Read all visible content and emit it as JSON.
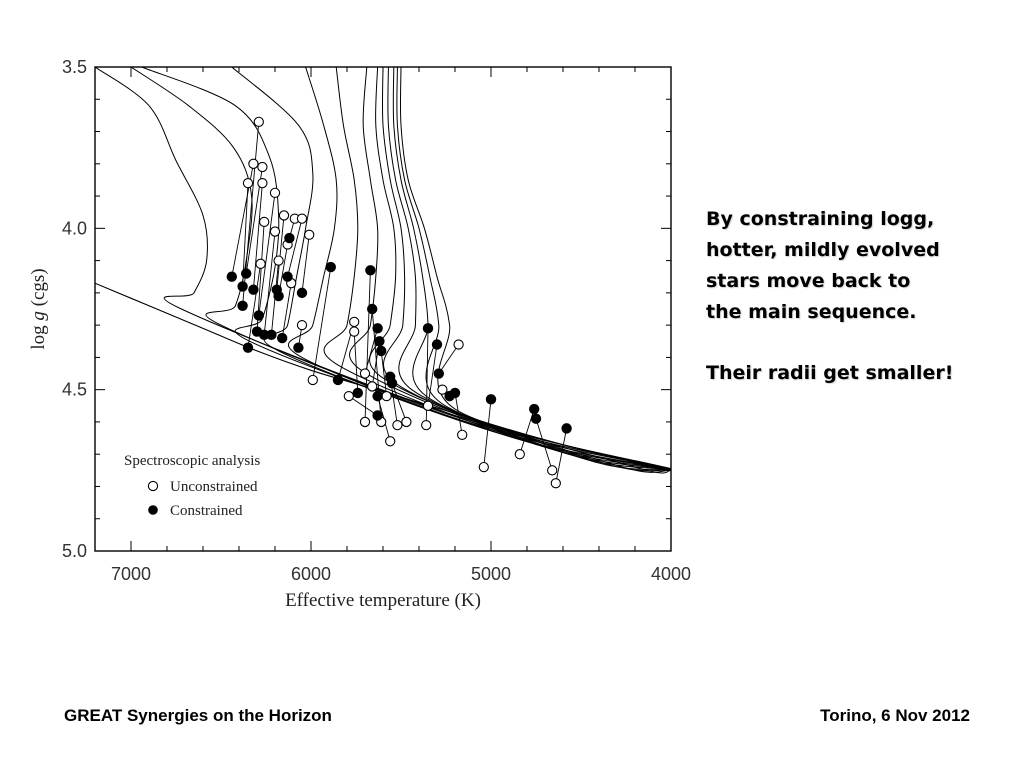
{
  "annotation": {
    "lines": [
      "By constraining logg,",
      "hotter, mildly evolved",
      "stars move back to",
      "the main sequence."
    ],
    "highlight": "Their radii get smaller!"
  },
  "footer": {
    "left": "GREAT Synergies on the Horizon",
    "right": "Torino, 6 Nov 2012"
  },
  "chart_data": {
    "type": "scatter",
    "title": "",
    "xlabel": "Effective temperature (K)",
    "ylabel_prefix": "log ",
    "ylabel_italic": "g",
    "ylabel_suffix": " (cgs)",
    "xlim": [
      7200,
      4000
    ],
    "ylim": [
      3.5,
      5.0
    ],
    "x_ticks": [
      7000,
      6000,
      5000,
      4000
    ],
    "x_tick_labels": [
      "7000",
      "6000",
      "5000",
      "4000"
    ],
    "y_ticks": [
      3.5,
      4.0,
      4.5,
      5.0
    ],
    "y_tick_labels": [
      "3.5",
      "4.0",
      "4.5",
      "5.0"
    ],
    "grid": false,
    "legend": {
      "position": "bottom-left",
      "title": "Spectroscopic analysis",
      "entries": [
        {
          "label": "Unconstrained",
          "marker": "open-circle"
        },
        {
          "label": "Constrained",
          "marker": "filled-circle"
        }
      ]
    },
    "colors": {
      "line": "#000000",
      "open_fill": "#ffffff",
      "filled": "#000000"
    },
    "isochrones": [
      {
        "points": [
          [
            7200,
            3.5
          ],
          [
            6900,
            3.62
          ],
          [
            6750,
            3.79
          ],
          [
            6600,
            3.96
          ],
          [
            6580,
            4.1
          ],
          [
            6650,
            4.2
          ],
          [
            6720,
            4.25
          ]
        ]
      },
      {
        "points": [
          [
            7000,
            3.5
          ],
          [
            6680,
            3.62
          ],
          [
            6430,
            3.75
          ],
          [
            6330,
            3.9
          ],
          [
            6360,
            4.1
          ],
          [
            6420,
            4.24
          ],
          [
            6500,
            4.3
          ]
        ]
      },
      {
        "points": [
          [
            6940,
            3.5
          ],
          [
            6420,
            3.62
          ],
          [
            6230,
            3.78
          ],
          [
            6180,
            3.96
          ],
          [
            6200,
            4.12
          ],
          [
            6270,
            4.28
          ],
          [
            6340,
            4.35
          ]
        ]
      },
      {
        "points": [
          [
            6440,
            3.5
          ],
          [
            6070,
            3.68
          ],
          [
            5990,
            3.83
          ],
          [
            6030,
            4.0
          ],
          [
            6080,
            4.15
          ],
          [
            6130,
            4.3
          ],
          [
            6180,
            4.38
          ]
        ]
      },
      {
        "points": [
          [
            6030,
            3.5
          ],
          [
            5930,
            3.68
          ],
          [
            5860,
            3.85
          ],
          [
            5870,
            4.0
          ],
          [
            5930,
            4.15
          ],
          [
            5990,
            4.3
          ],
          [
            6050,
            4.4
          ]
        ]
      },
      {
        "points": [
          [
            5860,
            3.5
          ],
          [
            5820,
            3.68
          ],
          [
            5760,
            3.85
          ],
          [
            5740,
            4.0
          ],
          [
            5760,
            4.15
          ],
          [
            5800,
            4.3
          ],
          [
            5860,
            4.42
          ]
        ]
      },
      {
        "points": [
          [
            5690,
            3.5
          ],
          [
            5710,
            3.68
          ],
          [
            5670,
            3.85
          ],
          [
            5630,
            4.0
          ],
          [
            5640,
            4.15
          ],
          [
            5670,
            4.3
          ],
          [
            5720,
            4.44
          ]
        ]
      },
      {
        "points": [
          [
            5630,
            3.5
          ],
          [
            5640,
            3.68
          ],
          [
            5600,
            3.85
          ],
          [
            5540,
            4.0
          ],
          [
            5530,
            4.15
          ],
          [
            5560,
            4.3
          ],
          [
            5610,
            4.46
          ]
        ]
      },
      {
        "points": [
          [
            5600,
            3.5
          ],
          [
            5600,
            3.68
          ],
          [
            5560,
            3.85
          ],
          [
            5500,
            4.0
          ],
          [
            5480,
            4.15
          ],
          [
            5490,
            4.3
          ],
          [
            5530,
            4.48
          ]
        ]
      },
      {
        "points": [
          [
            5570,
            3.5
          ],
          [
            5570,
            3.68
          ],
          [
            5530,
            3.85
          ],
          [
            5460,
            4.0
          ],
          [
            5420,
            4.15
          ],
          [
            5420,
            4.3
          ],
          [
            5440,
            4.5
          ]
        ]
      },
      {
        "points": [
          [
            5540,
            3.5
          ],
          [
            5540,
            3.68
          ],
          [
            5500,
            3.85
          ],
          [
            5430,
            4.0
          ],
          [
            5380,
            4.15
          ],
          [
            5350,
            4.3
          ],
          [
            5360,
            4.52
          ]
        ]
      },
      {
        "points": [
          [
            5520,
            3.5
          ],
          [
            5520,
            3.68
          ],
          [
            5480,
            3.85
          ],
          [
            5400,
            4.0
          ],
          [
            5340,
            4.15
          ],
          [
            5290,
            4.3
          ],
          [
            5280,
            4.54
          ]
        ]
      },
      {
        "points": [
          [
            5500,
            3.5
          ],
          [
            5500,
            3.68
          ],
          [
            5460,
            3.85
          ],
          [
            5370,
            4.0
          ],
          [
            5300,
            4.15
          ],
          [
            5230,
            4.3
          ],
          [
            5200,
            4.56
          ]
        ]
      }
    ],
    "track_endpoints": [
      {
        "x": 5200,
        "y": 4.58
      },
      {
        "x": 5110,
        "y": 4.6
      },
      {
        "x": 5020,
        "y": 4.62
      },
      {
        "x": 4930,
        "y": 4.64
      },
      {
        "x": 4840,
        "y": 4.655
      },
      {
        "x": 4750,
        "y": 4.67
      },
      {
        "x": 4660,
        "y": 4.685
      },
      {
        "x": 4570,
        "y": 4.7
      },
      {
        "x": 4480,
        "y": 4.715
      },
      {
        "x": 4390,
        "y": 4.725
      },
      {
        "x": 4300,
        "y": 4.735
      },
      {
        "x": 4200,
        "y": 4.74
      },
      {
        "x": 4000,
        "y": 4.75
      }
    ],
    "zams": [
      [
        7200,
        4.17
      ],
      [
        6900,
        4.24
      ],
      [
        6600,
        4.31
      ],
      [
        6300,
        4.38
      ],
      [
        6000,
        4.44
      ],
      [
        5700,
        4.49
      ],
      [
        5400,
        4.54
      ],
      [
        5100,
        4.59
      ],
      [
        4800,
        4.64
      ],
      [
        4500,
        4.685
      ],
      [
        4200,
        4.725
      ],
      [
        4000,
        4.75
      ]
    ],
    "pairs": [
      {
        "uncon": [
          6290,
          3.67
        ],
        "con": [
          6380,
          4.24
        ]
      },
      {
        "uncon": [
          6320,
          3.8
        ],
        "con": [
          6440,
          4.15
        ]
      },
      {
        "uncon": [
          6270,
          3.81
        ],
        "con": [
          6360,
          4.14
        ]
      },
      {
        "uncon": [
          6350,
          3.86
        ],
        "con": [
          6380,
          4.18
        ]
      },
      {
        "uncon": [
          6270,
          3.86
        ],
        "con": [
          6320,
          4.19
        ]
      },
      {
        "uncon": [
          6200,
          3.89
        ],
        "con": [
          6290,
          4.27
        ]
      },
      {
        "uncon": [
          6260,
          3.98
        ],
        "con": [
          6300,
          4.32
        ]
      },
      {
        "uncon": [
          6150,
          3.96
        ],
        "con": [
          6190,
          4.19
        ]
      },
      {
        "uncon": [
          6090,
          3.97
        ],
        "con": [
          6120,
          4.03
        ]
      },
      {
        "uncon": [
          6050,
          3.97
        ],
        "con": [
          6130,
          4.15
        ]
      },
      {
        "uncon": [
          6200,
          4.01
        ],
        "con": [
          6260,
          4.33
        ]
      },
      {
        "uncon": [
          6130,
          4.05
        ],
        "con": [
          6180,
          4.21
        ]
      },
      {
        "uncon": [
          6010,
          4.02
        ],
        "con": [
          6050,
          4.2
        ]
      },
      {
        "uncon": [
          6280,
          4.11
        ],
        "con": [
          6350,
          4.37
        ]
      },
      {
        "uncon": [
          6180,
          4.1
        ],
        "con": [
          6220,
          4.33
        ]
      },
      {
        "uncon": [
          6110,
          4.17
        ],
        "con": [
          6160,
          4.34
        ]
      },
      {
        "uncon": [
          6050,
          4.3
        ],
        "con": [
          6070,
          4.37
        ]
      },
      {
        "uncon": [
          5990,
          4.47
        ],
        "con": [
          5890,
          4.12
        ]
      },
      {
        "uncon": [
          5760,
          4.29
        ],
        "con": [
          5850,
          4.47
        ]
      },
      {
        "uncon": [
          5760,
          4.32
        ],
        "con": [
          5740,
          4.51
        ]
      },
      {
        "uncon": [
          5700,
          4.6
        ],
        "con": [
          5670,
          4.13
        ]
      },
      {
        "uncon": [
          5610,
          4.6
        ],
        "con": [
          5660,
          4.25
        ]
      },
      {
        "uncon": [
          5700,
          4.45
        ],
        "con": [
          5630,
          4.31
        ]
      },
      {
        "uncon": [
          5660,
          4.49
        ],
        "con": [
          5620,
          4.35
        ]
      },
      {
        "uncon": [
          5580,
          4.52
        ],
        "con": [
          5610,
          4.38
        ]
      },
      {
        "uncon": [
          5560,
          4.66
        ],
        "con": [
          5630,
          4.52
        ]
      },
      {
        "uncon": [
          5520,
          4.61
        ],
        "con": [
          5560,
          4.46
        ]
      },
      {
        "uncon": [
          5470,
          4.6
        ],
        "con": [
          5550,
          4.48
        ]
      },
      {
        "uncon": [
          5360,
          4.61
        ],
        "con": [
          5350,
          4.31
        ]
      },
      {
        "uncon": [
          5350,
          4.55
        ],
        "con": [
          5300,
          4.36
        ]
      },
      {
        "uncon": [
          5180,
          4.36
        ],
        "con": [
          5290,
          4.45
        ]
      },
      {
        "uncon": [
          5270,
          4.5
        ],
        "con": [
          5230,
          4.52
        ]
      },
      {
        "uncon": [
          5160,
          4.64
        ],
        "con": [
          5200,
          4.51
        ]
      },
      {
        "uncon": [
          5040,
          4.74
        ],
        "con": [
          5000,
          4.53
        ]
      },
      {
        "uncon": [
          4840,
          4.7
        ],
        "con": [
          4760,
          4.56
        ]
      },
      {
        "uncon": [
          4660,
          4.75
        ],
        "con": [
          4750,
          4.59
        ]
      },
      {
        "uncon": [
          4640,
          4.79
        ],
        "con": [
          4580,
          4.62
        ]
      },
      {
        "uncon": [
          5790,
          4.52
        ],
        "con": [
          5630,
          4.58
        ]
      }
    ]
  }
}
